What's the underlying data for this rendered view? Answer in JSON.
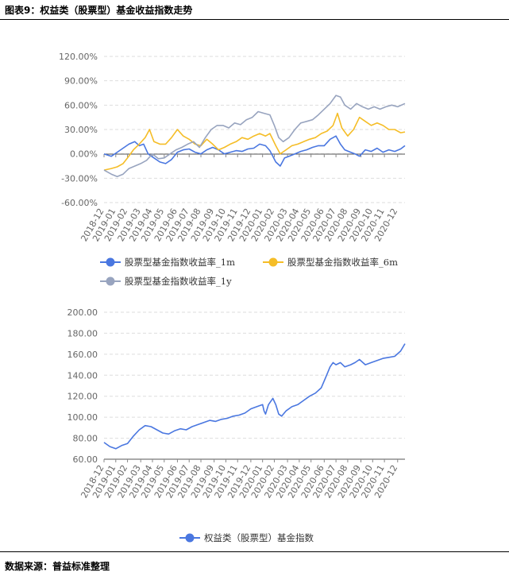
{
  "figure": {
    "title": "图表9：权益类（股票型）基金收益指数走势",
    "source": "数据来源：普益标准整理"
  },
  "chart_data": [
    {
      "type": "line",
      "ylim": [
        -0.6,
        1.2
      ],
      "y_ticks": [
        "120.00%",
        "90.00%",
        "60.00%",
        "30.00%",
        "0.00%",
        "-30.00%",
        "-60.00%"
      ],
      "y_tick_values": [
        1.2,
        0.9,
        0.6,
        0.3,
        0.0,
        -0.3,
        -0.6
      ],
      "x_ticks": [
        "2018-12",
        "2019-01",
        "2019-02",
        "2019-03",
        "2019-04",
        "2019-05",
        "2019-06",
        "2019-07",
        "2019-08",
        "2019-09",
        "2019-10",
        "2019-11",
        "2019-12",
        "2020-01",
        "2020-02",
        "2020-03",
        "2020-04",
        "2020-05",
        "2020-06",
        "2020-07",
        "2020-08",
        "2020-09",
        "2020-10",
        "2020-11",
        "2020-12"
      ],
      "x_tick_values": [
        2018.92,
        2019.0,
        2019.08,
        2019.17,
        2019.25,
        2019.33,
        2019.42,
        2019.5,
        2019.58,
        2019.67,
        2019.75,
        2019.83,
        2019.92,
        2020.0,
        2020.08,
        2020.17,
        2020.25,
        2020.33,
        2020.42,
        2020.5,
        2020.58,
        2020.67,
        2020.75,
        2020.83,
        2020.92
      ],
      "xlim": [
        2018.92,
        2020.97
      ],
      "grid": true,
      "legend": "bottom",
      "series": [
        {
          "name": "股票型基金指数收益率_1m",
          "color": "#4a77e0",
          "points": [
            [
              2018.92,
              0.0
            ],
            [
              2018.97,
              -0.03
            ],
            [
              2019.01,
              0.02
            ],
            [
              2019.05,
              0.07
            ],
            [
              2019.09,
              0.12
            ],
            [
              2019.13,
              0.15
            ],
            [
              2019.16,
              0.1
            ],
            [
              2019.19,
              0.12
            ],
            [
              2019.22,
              0.0
            ],
            [
              2019.26,
              -0.05
            ],
            [
              2019.3,
              -0.1
            ],
            [
              2019.34,
              -0.12
            ],
            [
              2019.38,
              -0.07
            ],
            [
              2019.42,
              0.02
            ],
            [
              2019.46,
              0.05
            ],
            [
              2019.5,
              0.06
            ],
            [
              2019.54,
              0.02
            ],
            [
              2019.58,
              0.0
            ],
            [
              2019.62,
              0.05
            ],
            [
              2019.66,
              0.08
            ],
            [
              2019.7,
              0.05
            ],
            [
              2019.74,
              0.0
            ],
            [
              2019.78,
              0.02
            ],
            [
              2019.82,
              0.04
            ],
            [
              2019.86,
              0.03
            ],
            [
              2019.9,
              0.06
            ],
            [
              2019.94,
              0.07
            ],
            [
              2019.98,
              0.12
            ],
            [
              2020.02,
              0.1
            ],
            [
              2020.05,
              0.04
            ],
            [
              2020.09,
              -0.1
            ],
            [
              2020.12,
              -0.15
            ],
            [
              2020.15,
              -0.05
            ],
            [
              2020.18,
              -0.03
            ],
            [
              2020.22,
              0.0
            ],
            [
              2020.26,
              0.03
            ],
            [
              2020.3,
              0.05
            ],
            [
              2020.34,
              0.08
            ],
            [
              2020.38,
              0.1
            ],
            [
              2020.42,
              0.1
            ],
            [
              2020.46,
              0.18
            ],
            [
              2020.5,
              0.22
            ],
            [
              2020.53,
              0.12
            ],
            [
              2020.56,
              0.05
            ],
            [
              2020.6,
              0.02
            ],
            [
              2020.63,
              0.0
            ],
            [
              2020.66,
              -0.03
            ],
            [
              2020.7,
              0.05
            ],
            [
              2020.74,
              0.03
            ],
            [
              2020.78,
              0.07
            ],
            [
              2020.82,
              0.02
            ],
            [
              2020.86,
              0.05
            ],
            [
              2020.9,
              0.03
            ],
            [
              2020.94,
              0.06
            ],
            [
              2020.97,
              0.1
            ]
          ]
        },
        {
          "name": "股票型基金指数收益率_6m",
          "color": "#f5bd27",
          "points": [
            [
              2018.92,
              -0.2
            ],
            [
              2018.97,
              -0.18
            ],
            [
              2019.01,
              -0.16
            ],
            [
              2019.05,
              -0.12
            ],
            [
              2019.08,
              -0.05
            ],
            [
              2019.12,
              0.05
            ],
            [
              2019.16,
              0.12
            ],
            [
              2019.2,
              0.2
            ],
            [
              2019.23,
              0.3
            ],
            [
              2019.26,
              0.15
            ],
            [
              2019.3,
              0.12
            ],
            [
              2019.34,
              0.12
            ],
            [
              2019.38,
              0.2
            ],
            [
              2019.42,
              0.3
            ],
            [
              2019.46,
              0.22
            ],
            [
              2019.5,
              0.18
            ],
            [
              2019.54,
              0.12
            ],
            [
              2019.58,
              0.1
            ],
            [
              2019.62,
              0.18
            ],
            [
              2019.66,
              0.12
            ],
            [
              2019.7,
              0.05
            ],
            [
              2019.74,
              0.08
            ],
            [
              2019.78,
              0.12
            ],
            [
              2019.82,
              0.15
            ],
            [
              2019.86,
              0.2
            ],
            [
              2019.9,
              0.18
            ],
            [
              2019.94,
              0.22
            ],
            [
              2019.98,
              0.25
            ],
            [
              2020.02,
              0.22
            ],
            [
              2020.05,
              0.25
            ],
            [
              2020.09,
              0.1
            ],
            [
              2020.12,
              0.0
            ],
            [
              2020.16,
              0.05
            ],
            [
              2020.2,
              0.1
            ],
            [
              2020.24,
              0.12
            ],
            [
              2020.28,
              0.15
            ],
            [
              2020.32,
              0.18
            ],
            [
              2020.36,
              0.2
            ],
            [
              2020.4,
              0.25
            ],
            [
              2020.44,
              0.28
            ],
            [
              2020.48,
              0.35
            ],
            [
              2020.51,
              0.5
            ],
            [
              2020.54,
              0.32
            ],
            [
              2020.58,
              0.22
            ],
            [
              2020.62,
              0.3
            ],
            [
              2020.66,
              0.45
            ],
            [
              2020.7,
              0.4
            ],
            [
              2020.74,
              0.35
            ],
            [
              2020.78,
              0.38
            ],
            [
              2020.82,
              0.35
            ],
            [
              2020.86,
              0.3
            ],
            [
              2020.9,
              0.3
            ],
            [
              2020.94,
              0.26
            ],
            [
              2020.97,
              0.27
            ]
          ]
        },
        {
          "name": "股票型基金指数收益率_1y",
          "color": "#98a4bf",
          "points": [
            [
              2018.92,
              -0.2
            ],
            [
              2018.97,
              -0.25
            ],
            [
              2019.01,
              -0.28
            ],
            [
              2019.05,
              -0.25
            ],
            [
              2019.09,
              -0.18
            ],
            [
              2019.13,
              -0.15
            ],
            [
              2019.17,
              -0.12
            ],
            [
              2019.21,
              -0.08
            ],
            [
              2019.25,
              0.0
            ],
            [
              2019.29,
              -0.06
            ],
            [
              2019.33,
              -0.05
            ],
            [
              2019.37,
              0.0
            ],
            [
              2019.41,
              0.05
            ],
            [
              2019.45,
              0.08
            ],
            [
              2019.49,
              0.12
            ],
            [
              2019.53,
              0.15
            ],
            [
              2019.57,
              0.08
            ],
            [
              2019.61,
              0.2
            ],
            [
              2019.65,
              0.3
            ],
            [
              2019.69,
              0.35
            ],
            [
              2019.73,
              0.35
            ],
            [
              2019.77,
              0.32
            ],
            [
              2019.81,
              0.38
            ],
            [
              2019.85,
              0.36
            ],
            [
              2019.89,
              0.42
            ],
            [
              2019.93,
              0.45
            ],
            [
              2019.97,
              0.52
            ],
            [
              2020.01,
              0.5
            ],
            [
              2020.05,
              0.48
            ],
            [
              2020.08,
              0.35
            ],
            [
              2020.11,
              0.2
            ],
            [
              2020.14,
              0.15
            ],
            [
              2020.18,
              0.2
            ],
            [
              2020.22,
              0.3
            ],
            [
              2020.26,
              0.38
            ],
            [
              2020.3,
              0.4
            ],
            [
              2020.34,
              0.42
            ],
            [
              2020.38,
              0.48
            ],
            [
              2020.42,
              0.55
            ],
            [
              2020.46,
              0.62
            ],
            [
              2020.5,
              0.72
            ],
            [
              2020.53,
              0.7
            ],
            [
              2020.56,
              0.6
            ],
            [
              2020.6,
              0.55
            ],
            [
              2020.64,
              0.62
            ],
            [
              2020.68,
              0.58
            ],
            [
              2020.72,
              0.55
            ],
            [
              2020.76,
              0.58
            ],
            [
              2020.8,
              0.55
            ],
            [
              2020.84,
              0.58
            ],
            [
              2020.88,
              0.6
            ],
            [
              2020.92,
              0.58
            ],
            [
              2020.97,
              0.62
            ]
          ]
        }
      ]
    },
    {
      "type": "line",
      "ylim": [
        60,
        200
      ],
      "y_ticks": [
        "200.00",
        "180.00",
        "160.00",
        "140.00",
        "120.00",
        "100.00",
        "80.00",
        "60.00"
      ],
      "y_tick_values": [
        200,
        180,
        160,
        140,
        120,
        100,
        80,
        60
      ],
      "x_ticks": [
        "2018-12",
        "2019-01",
        "2019-02",
        "2019-03",
        "2019-04",
        "2019-05",
        "2019-06",
        "2019-07",
        "2019-08",
        "2019-09",
        "2019-10",
        "2019-11",
        "2019-12",
        "2020-01",
        "2020-02",
        "2020-03",
        "2020-04",
        "2020-05",
        "2020-06",
        "2020-07",
        "2020-08",
        "2020-09",
        "2020-10",
        "2020-11",
        "2020-12"
      ],
      "x_tick_values": [
        2018.92,
        2019.0,
        2019.08,
        2019.17,
        2019.25,
        2019.33,
        2019.42,
        2019.5,
        2019.58,
        2019.67,
        2019.75,
        2019.83,
        2019.92,
        2020.0,
        2020.08,
        2020.17,
        2020.25,
        2020.33,
        2020.42,
        2020.5,
        2020.58,
        2020.67,
        2020.75,
        2020.83,
        2020.92
      ],
      "xlim": [
        2018.92,
        2020.97
      ],
      "grid": true,
      "legend": "bottom",
      "series": [
        {
          "name": "权益类（股票型）基金指数",
          "color": "#4a77e0",
          "points": [
            [
              2018.92,
              76
            ],
            [
              2018.96,
              72
            ],
            [
              2019.0,
              70
            ],
            [
              2019.04,
              73
            ],
            [
              2019.08,
              75
            ],
            [
              2019.12,
              82
            ],
            [
              2019.16,
              88
            ],
            [
              2019.2,
              92
            ],
            [
              2019.24,
              91
            ],
            [
              2019.28,
              88
            ],
            [
              2019.32,
              85
            ],
            [
              2019.36,
              84
            ],
            [
              2019.4,
              87
            ],
            [
              2019.44,
              89
            ],
            [
              2019.48,
              88
            ],
            [
              2019.52,
              91
            ],
            [
              2019.56,
              93
            ],
            [
              2019.6,
              95
            ],
            [
              2019.64,
              97
            ],
            [
              2019.68,
              96
            ],
            [
              2019.72,
              98
            ],
            [
              2019.76,
              99
            ],
            [
              2019.8,
              101
            ],
            [
              2019.84,
              102
            ],
            [
              2019.88,
              104
            ],
            [
              2019.92,
              108
            ],
            [
              2019.96,
              110
            ],
            [
              2020.0,
              112
            ],
            [
              2020.01,
              106
            ],
            [
              2020.02,
              103
            ],
            [
              2020.04,
              112
            ],
            [
              2020.07,
              118
            ],
            [
              2020.09,
              112
            ],
            [
              2020.11,
              103
            ],
            [
              2020.13,
              101
            ],
            [
              2020.16,
              106
            ],
            [
              2020.2,
              110
            ],
            [
              2020.24,
              112
            ],
            [
              2020.28,
              116
            ],
            [
              2020.32,
              120
            ],
            [
              2020.36,
              123
            ],
            [
              2020.4,
              128
            ],
            [
              2020.43,
              138
            ],
            [
              2020.46,
              148
            ],
            [
              2020.48,
              152
            ],
            [
              2020.5,
              150
            ],
            [
              2020.53,
              152
            ],
            [
              2020.56,
              148
            ],
            [
              2020.6,
              150
            ],
            [
              2020.63,
              152
            ],
            [
              2020.66,
              155
            ],
            [
              2020.7,
              150
            ],
            [
              2020.74,
              152
            ],
            [
              2020.78,
              154
            ],
            [
              2020.82,
              156
            ],
            [
              2020.86,
              157
            ],
            [
              2020.9,
              158
            ],
            [
              2020.94,
              163
            ],
            [
              2020.97,
              170
            ]
          ]
        }
      ]
    }
  ]
}
